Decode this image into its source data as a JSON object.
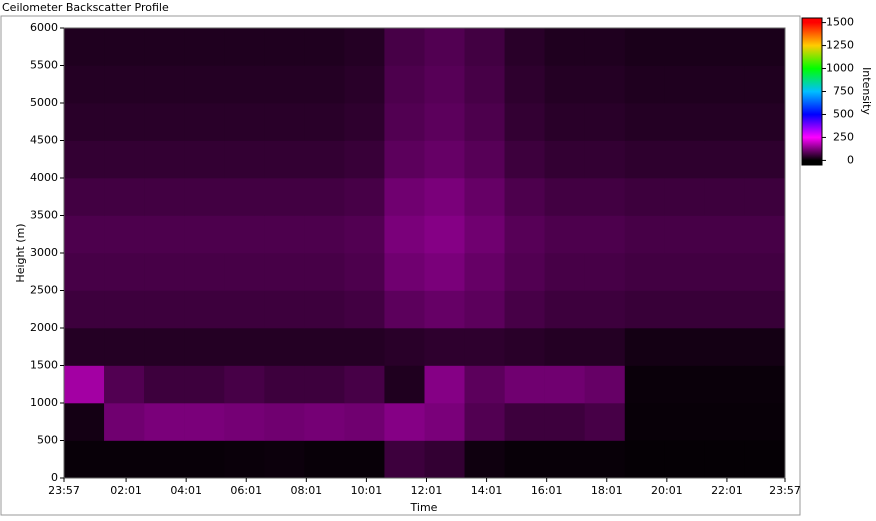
{
  "chart_data": {
    "type": "heatmap",
    "title": "Ceilometer Backscatter Profile",
    "xlabel": "Time",
    "ylabel": "Height (m)",
    "colorbar_label": "Intensity",
    "xlim": [
      0,
      1440
    ],
    "xticks": [
      {
        "value": 0,
        "label": "23:57"
      },
      {
        "value": 124,
        "label": "02:01"
      },
      {
        "value": 244,
        "label": "04:01"
      },
      {
        "value": 364,
        "label": "06:01"
      },
      {
        "value": 484,
        "label": "08:01"
      },
      {
        "value": 604,
        "label": "10:01"
      },
      {
        "value": 724,
        "label": "12:01"
      },
      {
        "value": 844,
        "label": "14:01"
      },
      {
        "value": 964,
        "label": "16:01"
      },
      {
        "value": 1084,
        "label": "18:01"
      },
      {
        "value": 1204,
        "label": "20:01"
      },
      {
        "value": 1324,
        "label": "22:01"
      },
      {
        "value": 1440,
        "label": "23:57"
      }
    ],
    "ylim": [
      0,
      6000
    ],
    "yticks": [
      0,
      500,
      1000,
      1500,
      2000,
      2500,
      3000,
      3500,
      4000,
      4500,
      5000,
      5500,
      6000
    ],
    "xbins": [
      0,
      80,
      160,
      240,
      320,
      400,
      480,
      560,
      640,
      720,
      800,
      880,
      960,
      1040,
      1120,
      1200,
      1280,
      1360,
      1440
    ],
    "ybins": [
      0,
      500,
      1000,
      1500,
      2000,
      2500,
      3000,
      3500,
      4000,
      4500,
      5000,
      5500,
      6000
    ],
    "z": [
      [
        8,
        8,
        8,
        8,
        10,
        12,
        8,
        8,
        60,
        50,
        15,
        8,
        8,
        8,
        5,
        5,
        5,
        5
      ],
      [
        20,
        110,
        120,
        120,
        115,
        110,
        115,
        110,
        130,
        120,
        80,
        60,
        60,
        70,
        8,
        8,
        8,
        8
      ],
      [
        160,
        80,
        60,
        60,
        70,
        60,
        60,
        70,
        30,
        130,
        90,
        110,
        110,
        100,
        10,
        10,
        10,
        10
      ],
      [
        35,
        35,
        35,
        35,
        35,
        35,
        35,
        35,
        40,
        45,
        45,
        40,
        35,
        35,
        20,
        20,
        20,
        20
      ],
      [
        60,
        60,
        60,
        60,
        60,
        60,
        60,
        65,
        90,
        100,
        90,
        70,
        60,
        60,
        55,
        55,
        55,
        55
      ],
      [
        70,
        70,
        70,
        70,
        70,
        70,
        70,
        75,
        110,
        120,
        100,
        80,
        70,
        70,
        65,
        65,
        65,
        65
      ],
      [
        75,
        75,
        75,
        75,
        75,
        75,
        75,
        80,
        120,
        130,
        110,
        85,
        75,
        75,
        70,
        70,
        70,
        70
      ],
      [
        65,
        65,
        65,
        65,
        65,
        65,
        65,
        70,
        110,
        120,
        100,
        75,
        65,
        65,
        60,
        60,
        60,
        60
      ],
      [
        50,
        50,
        50,
        50,
        50,
        50,
        50,
        55,
        90,
        100,
        85,
        60,
        50,
        50,
        45,
        45,
        45,
        45
      ],
      [
        40,
        40,
        40,
        40,
        40,
        40,
        40,
        45,
        80,
        90,
        75,
        50,
        40,
        40,
        35,
        35,
        35,
        35
      ],
      [
        35,
        35,
        35,
        35,
        35,
        35,
        35,
        40,
        75,
        85,
        70,
        45,
        35,
        35,
        30,
        30,
        30,
        30
      ],
      [
        30,
        30,
        30,
        30,
        30,
        30,
        30,
        35,
        70,
        80,
        65,
        40,
        30,
        30,
        25,
        25,
        25,
        25
      ]
    ],
    "zlim": [
      -50,
      1550
    ],
    "zticks": [
      0,
      250,
      500,
      750,
      1000,
      1250,
      1500
    ],
    "colorscale": [
      [
        0,
        "#000000"
      ],
      [
        250,
        "#ff00ff"
      ],
      [
        500,
        "#0000ff"
      ],
      [
        750,
        "#00bfff"
      ],
      [
        1000,
        "#00ff00"
      ],
      [
        1250,
        "#ffcc00"
      ],
      [
        1500,
        "#ff0000"
      ]
    ]
  }
}
